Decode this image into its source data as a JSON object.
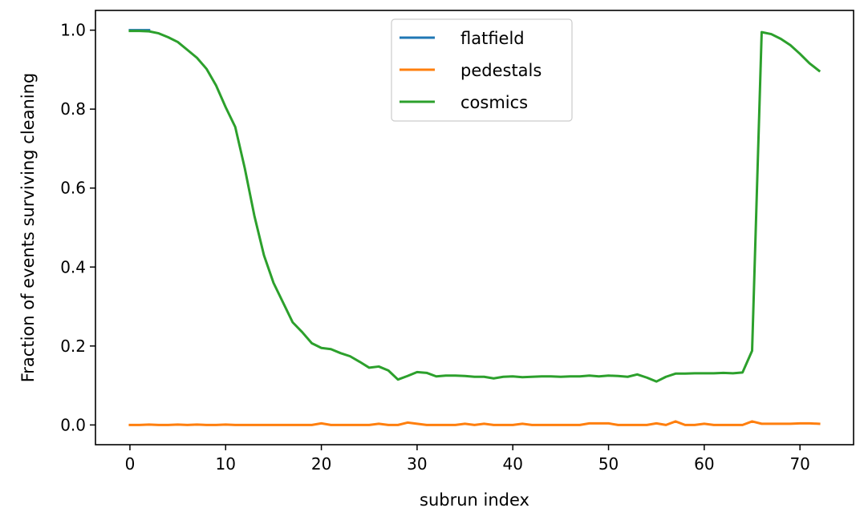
{
  "chart_data": {
    "type": "line",
    "title": "",
    "xlabel": "subrun index",
    "ylabel": "Fraction of events surviving cleaning",
    "xlim": [
      -3.6,
      75.6
    ],
    "ylim": [
      -0.05,
      1.05
    ],
    "xticks": [
      0,
      10,
      20,
      30,
      40,
      50,
      60,
      70
    ],
    "yticks": [
      0.0,
      0.2,
      0.4,
      0.6,
      0.8,
      1.0
    ],
    "grid": false,
    "legend": "top-center",
    "series": [
      {
        "name": "flatfield",
        "color": "#1f77b4",
        "x": [
          0,
          1,
          2
        ],
        "y": [
          1.0,
          1.0,
          1.0
        ]
      },
      {
        "name": "pedestals",
        "color": "#ff7f0e",
        "x": [
          0,
          1,
          2,
          3,
          4,
          5,
          6,
          7,
          8,
          9,
          10,
          11,
          12,
          13,
          14,
          15,
          16,
          17,
          18,
          19,
          20,
          21,
          22,
          23,
          24,
          25,
          26,
          27,
          28,
          29,
          30,
          31,
          32,
          33,
          34,
          35,
          36,
          37,
          38,
          39,
          40,
          41,
          42,
          43,
          44,
          45,
          46,
          47,
          48,
          49,
          50,
          51,
          52,
          53,
          54,
          55,
          56,
          57,
          58,
          59,
          60,
          61,
          62,
          63,
          64,
          65,
          66,
          67,
          68,
          69,
          70,
          71,
          72
        ],
        "y": [
          0.0,
          0.0,
          0.001,
          0.0,
          0.0,
          0.001,
          0.0,
          0.001,
          0.0,
          0.0,
          0.001,
          0.0,
          0.0,
          0.0,
          0.0,
          0.0,
          0.0,
          0.0,
          0.0,
          0.0,
          0.004,
          0.0,
          0.0,
          0.0,
          0.0,
          0.0,
          0.003,
          0.0,
          0.0,
          0.006,
          0.003,
          0.0,
          0.0,
          0.0,
          0.0,
          0.003,
          0.0,
          0.003,
          0.0,
          0.0,
          0.0,
          0.003,
          0.0,
          0.0,
          0.0,
          0.0,
          0.0,
          0.0,
          0.004,
          0.004,
          0.004,
          0.0,
          0.0,
          0.0,
          0.0,
          0.004,
          0.0,
          0.009,
          0.0,
          0.0,
          0.003,
          0.0,
          0.0,
          0.0,
          0.0,
          0.009,
          0.003,
          0.003,
          0.003,
          0.003,
          0.004,
          0.004,
          0.003
        ]
      },
      {
        "name": "cosmics",
        "color": "#2ca02c",
        "x": [
          0,
          1,
          2,
          3,
          4,
          5,
          6,
          7,
          8,
          9,
          10,
          11,
          12,
          13,
          14,
          15,
          16,
          17,
          18,
          19,
          20,
          21,
          22,
          23,
          24,
          25,
          26,
          27,
          28,
          29,
          30,
          31,
          32,
          33,
          34,
          35,
          36,
          37,
          38,
          39,
          40,
          41,
          42,
          43,
          44,
          45,
          46,
          47,
          48,
          49,
          50,
          51,
          52,
          53,
          54,
          55,
          56,
          57,
          58,
          59,
          60,
          61,
          62,
          63,
          64,
          65,
          66,
          67,
          68,
          69,
          70,
          71,
          72
        ],
        "y": [
          0.998,
          0.998,
          0.997,
          0.992,
          0.982,
          0.97,
          0.95,
          0.93,
          0.902,
          0.86,
          0.805,
          0.755,
          0.65,
          0.53,
          0.43,
          0.36,
          0.31,
          0.26,
          0.235,
          0.207,
          0.195,
          0.192,
          0.182,
          0.174,
          0.16,
          0.145,
          0.148,
          0.138,
          0.115,
          0.124,
          0.134,
          0.132,
          0.123,
          0.125,
          0.125,
          0.124,
          0.122,
          0.122,
          0.118,
          0.122,
          0.123,
          0.121,
          0.122,
          0.123,
          0.123,
          0.122,
          0.123,
          0.123,
          0.125,
          0.123,
          0.125,
          0.124,
          0.122,
          0.128,
          0.12,
          0.11,
          0.122,
          0.13,
          0.13,
          0.131,
          0.131,
          0.131,
          0.132,
          0.131,
          0.133,
          0.188,
          0.995,
          0.99,
          0.978,
          0.962,
          0.94,
          0.916,
          0.897
        ]
      }
    ]
  }
}
